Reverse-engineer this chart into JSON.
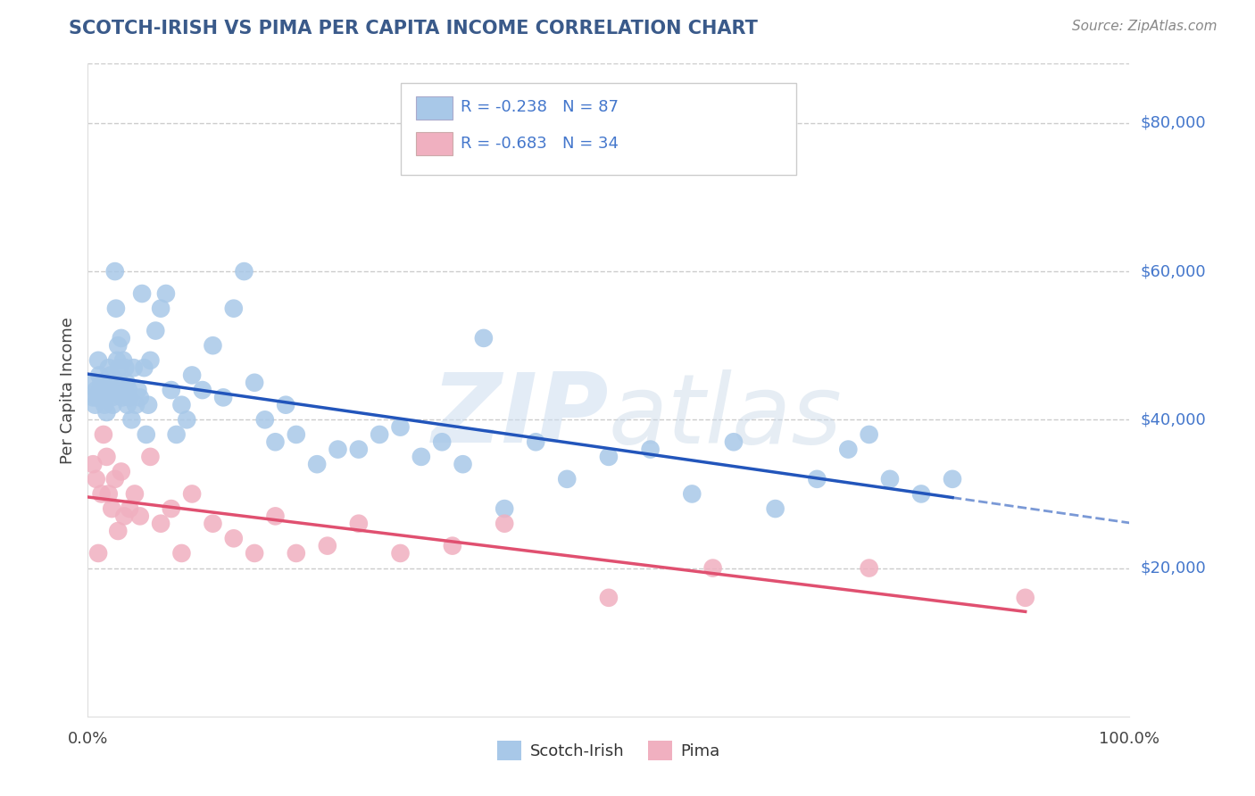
{
  "title": "SCOTCH-IRISH VS PIMA PER CAPITA INCOME CORRELATION CHART",
  "source": "Source: ZipAtlas.com",
  "ylabel": "Per Capita Income",
  "xlim": [
    0,
    1.0
  ],
  "ylim": [
    0,
    88000
  ],
  "ytick_values": [
    20000,
    40000,
    60000,
    80000
  ],
  "ytick_labels": [
    "$20,000",
    "$40,000",
    "$60,000",
    "$80,000"
  ],
  "grid_color": "#cccccc",
  "background_color": "#ffffff",
  "title_color": "#3a5a8a",
  "source_color": "#888888",
  "scotch_irish_color": "#a8c8e8",
  "scotch_irish_line_color": "#2255bb",
  "pima_color": "#f0b0c0",
  "pima_line_color": "#e05070",
  "label_color": "#4477cc",
  "scotch_irish_label": "Scotch-Irish",
  "pima_label": "Pima",
  "si_x": [
    0.005,
    0.006,
    0.007,
    0.008,
    0.009,
    0.01,
    0.011,
    0.012,
    0.013,
    0.014,
    0.015,
    0.016,
    0.017,
    0.018,
    0.019,
    0.02,
    0.021,
    0.022,
    0.023,
    0.024,
    0.025,
    0.026,
    0.027,
    0.028,
    0.029,
    0.03,
    0.031,
    0.032,
    0.033,
    0.034,
    0.035,
    0.036,
    0.037,
    0.038,
    0.039,
    0.04,
    0.042,
    0.044,
    0.046,
    0.048,
    0.05,
    0.052,
    0.054,
    0.056,
    0.058,
    0.06,
    0.065,
    0.07,
    0.075,
    0.08,
    0.085,
    0.09,
    0.095,
    0.1,
    0.11,
    0.12,
    0.13,
    0.14,
    0.15,
    0.16,
    0.17,
    0.18,
    0.19,
    0.2,
    0.22,
    0.24,
    0.26,
    0.28,
    0.3,
    0.32,
    0.34,
    0.36,
    0.38,
    0.4,
    0.43,
    0.46,
    0.5,
    0.54,
    0.58,
    0.62,
    0.66,
    0.7,
    0.73,
    0.75,
    0.77,
    0.8,
    0.83
  ],
  "si_y": [
    43000,
    45000,
    42000,
    44000,
    43000,
    48000,
    46000,
    44000,
    45000,
    43000,
    44000,
    42000,
    43000,
    41000,
    45000,
    47000,
    44000,
    46000,
    43000,
    42000,
    44000,
    60000,
    55000,
    48000,
    50000,
    47000,
    45000,
    51000,
    43000,
    48000,
    44000,
    47000,
    45000,
    42000,
    44000,
    43000,
    40000,
    47000,
    42000,
    44000,
    43000,
    57000,
    47000,
    38000,
    42000,
    48000,
    52000,
    55000,
    57000,
    44000,
    38000,
    42000,
    40000,
    46000,
    44000,
    50000,
    43000,
    55000,
    60000,
    45000,
    40000,
    37000,
    42000,
    38000,
    34000,
    36000,
    36000,
    38000,
    39000,
    35000,
    37000,
    34000,
    51000,
    28000,
    37000,
    32000,
    35000,
    36000,
    30000,
    37000,
    28000,
    32000,
    36000,
    38000,
    32000,
    30000,
    32000
  ],
  "pi_x": [
    0.005,
    0.008,
    0.01,
    0.013,
    0.015,
    0.018,
    0.02,
    0.023,
    0.026,
    0.029,
    0.032,
    0.035,
    0.04,
    0.045,
    0.05,
    0.06,
    0.07,
    0.08,
    0.09,
    0.1,
    0.12,
    0.14,
    0.16,
    0.18,
    0.2,
    0.23,
    0.26,
    0.3,
    0.35,
    0.4,
    0.5,
    0.6,
    0.75,
    0.9
  ],
  "pi_y": [
    34000,
    32000,
    22000,
    30000,
    38000,
    35000,
    30000,
    28000,
    32000,
    25000,
    33000,
    27000,
    28000,
    30000,
    27000,
    35000,
    26000,
    28000,
    22000,
    30000,
    26000,
    24000,
    22000,
    27000,
    22000,
    23000,
    26000,
    22000,
    23000,
    26000,
    16000,
    20000,
    20000,
    16000
  ]
}
